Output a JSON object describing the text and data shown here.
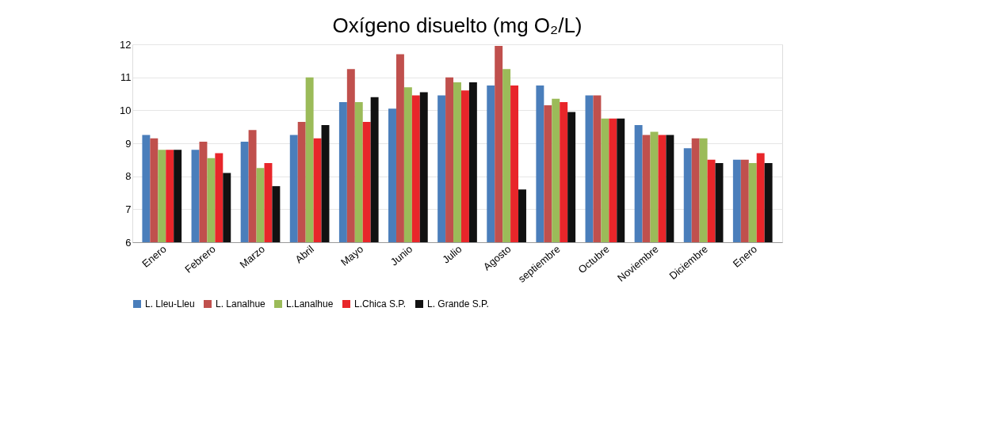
{
  "chart_data": {
    "type": "bar",
    "title": "Oxígeno disuelto (mg O₂/L)",
    "categories": [
      "Enero",
      "Febrero",
      "Marzo",
      "Abril",
      "Mayo",
      "Junio",
      "Julio",
      "Agosto",
      "septiembre",
      "Octubre",
      "Noviembre",
      "Diciembre",
      "Enero"
    ],
    "series": [
      {
        "name": "L. Lleu-Lleu",
        "color": "#4a7ebb",
        "values": [
          9.25,
          8.8,
          9.05,
          9.25,
          10.25,
          10.05,
          10.45,
          10.75,
          10.75,
          10.45,
          9.55,
          8.85,
          8.5
        ]
      },
      {
        "name": "L. Lanalhue",
        "color": "#c0504d",
        "values": [
          9.15,
          9.05,
          9.4,
          9.65,
          11.25,
          11.7,
          11.0,
          11.95,
          10.15,
          10.45,
          9.25,
          9.15,
          8.5
        ]
      },
      {
        "name": "L.Lanalhue",
        "color": "#9bbb59",
        "values": [
          8.8,
          8.55,
          8.25,
          11.0,
          10.25,
          10.7,
          10.85,
          11.25,
          10.35,
          9.75,
          9.35,
          9.15,
          8.4
        ]
      },
      {
        "name": "L.Chica S.P.",
        "color": "#e8262a",
        "values": [
          8.8,
          8.7,
          8.4,
          9.15,
          9.65,
          10.45,
          10.6,
          10.75,
          10.25,
          9.75,
          9.25,
          8.5,
          8.7
        ]
      },
      {
        "name": "L. Grande S.P.",
        "color": "#111111",
        "values": [
          8.8,
          8.1,
          7.7,
          9.55,
          10.4,
          10.55,
          10.85,
          7.6,
          9.95,
          9.75,
          9.25,
          8.4,
          8.4
        ]
      }
    ],
    "ylim": [
      6,
      12
    ],
    "yticks": [
      6,
      7,
      8,
      9,
      10,
      11,
      12
    ],
    "grid": "y",
    "legend": "bottom"
  }
}
